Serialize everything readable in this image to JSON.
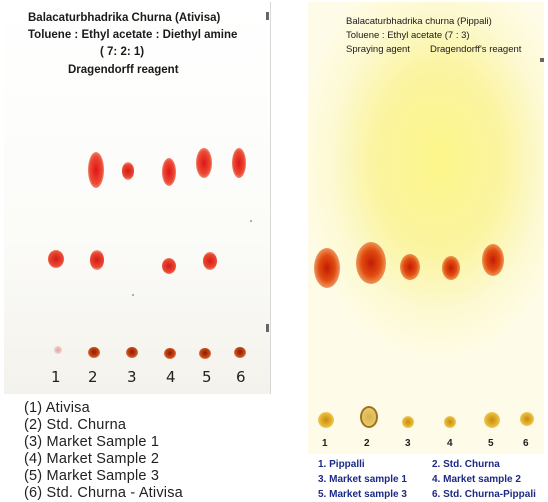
{
  "left_plate": {
    "title": "Balacaturbhadrika Churna (Ativisa)",
    "mobile_phase": "Toluene : Ethyl acetate : Diethyl amine",
    "ratio": "( 7: 2: 1)",
    "reagent": "Dragendorff reagent",
    "lanes": [
      "1",
      "2",
      "3",
      "4",
      "5",
      "6"
    ],
    "legend": [
      "(1) Ativisa",
      "(2) Std. Churna",
      "(3) Market Sample 1",
      "(4) Market Sample 2",
      "(5) Market Sample 3",
      "(6) Std. Churna - Ativisa"
    ]
  },
  "right_plate": {
    "title": "Balacaturbhadrika churna (Pippali)",
    "mobile_phase": "Toluene : Ethyl acetate (7 : 3)",
    "spraying_label": "Spraying agent",
    "reagent": "Dragendorff's reagent",
    "lanes": [
      "1",
      "2",
      "3",
      "4",
      "5",
      "6"
    ],
    "legend": [
      "1. Pippalli",
      "2. Std. Churna",
      "3. Market sample 1",
      "4. Market sample 2",
      "5. Market sample 3",
      "6. Std. Churna-Pippali"
    ]
  }
}
